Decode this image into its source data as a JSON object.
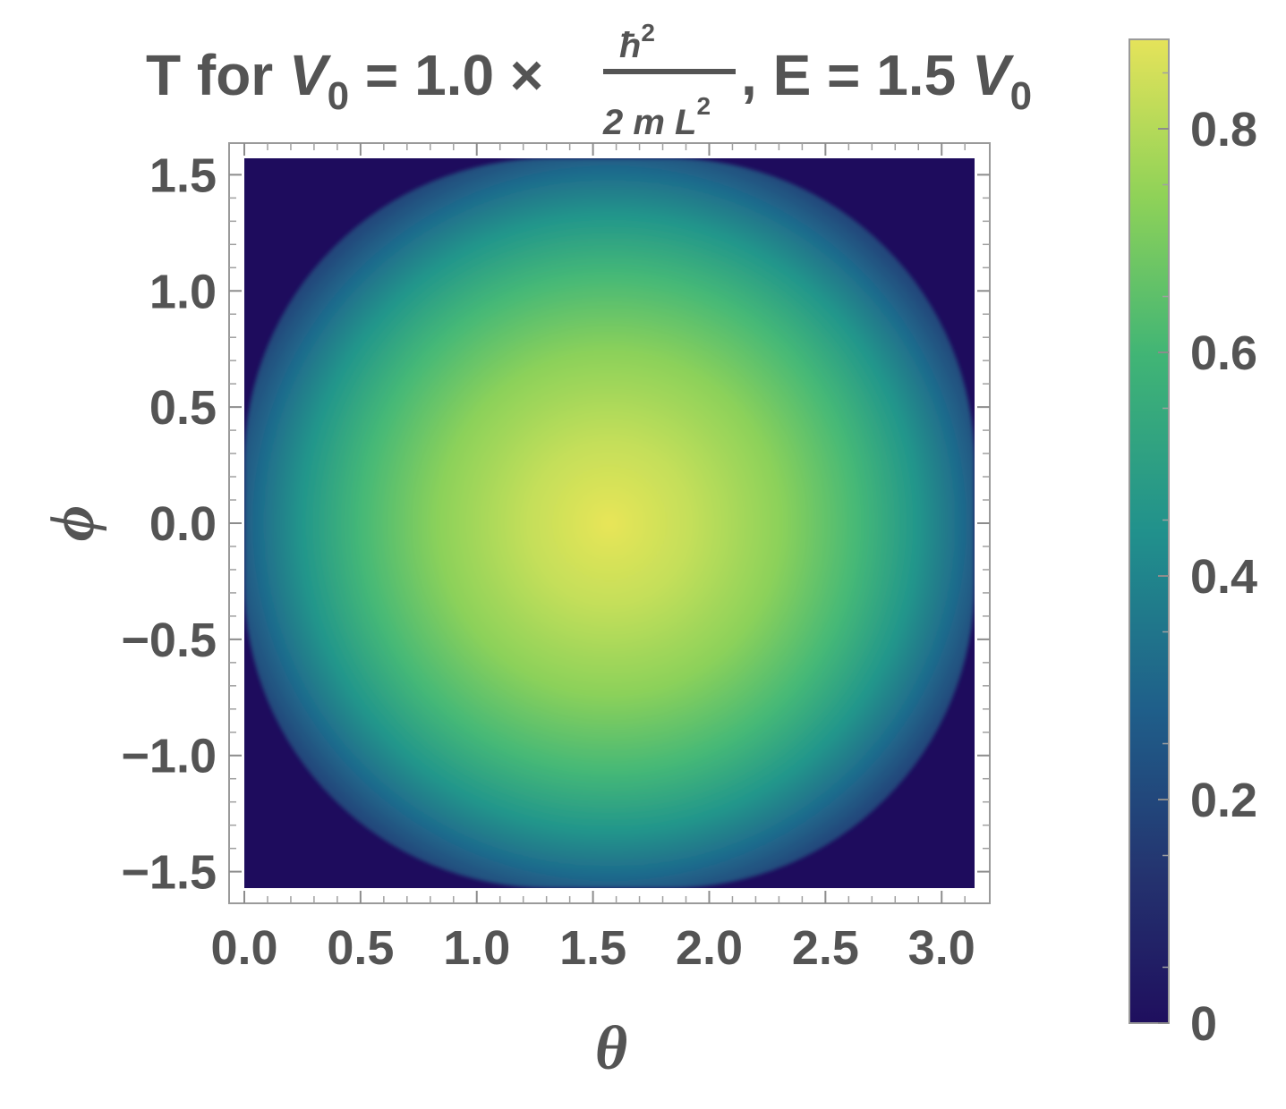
{
  "chart_data": {
    "type": "heatmap",
    "title": {
      "prefix": "T for ",
      "v0_symbol": "V",
      "v0_sub": "0",
      "v0_value": " = 1.0 ×",
      "frac_num": "ħ",
      "frac_num_sup": "2",
      "frac_den": "2 m L",
      "frac_den_sup": "2",
      "suffix": ", E = 1.5 ",
      "e_symbol": "V",
      "e_sub": "0"
    },
    "xlabel": "θ",
    "ylabel": "ϕ",
    "xlim": [
      0,
      3.14159
    ],
    "ylim": [
      -1.5708,
      1.5708
    ],
    "x_ticks": [
      "0.0",
      "0.5",
      "1.0",
      "1.5",
      "2.0",
      "2.5",
      "3.0"
    ],
    "x_tick_values": [
      0,
      0.5,
      1.0,
      1.5,
      2.0,
      2.5,
      3.0
    ],
    "y_ticks": [
      "1.5",
      "1.0",
      "0.5",
      "0.0",
      "−0.5",
      "−1.0",
      "−1.5"
    ],
    "y_tick_values": [
      1.5,
      1.0,
      0.5,
      0.0,
      -0.5,
      -1.0,
      -1.5
    ],
    "value_peak": 0.88,
    "value_peak_at": [
      1.5708,
      0.0
    ],
    "colorbar": {
      "range": [
        0,
        0.88
      ],
      "ticks": [
        "0.8",
        "0.6",
        "0.4",
        "0.2",
        "0"
      ],
      "tick_values": [
        0.8,
        0.6,
        0.4,
        0.2,
        0
      ],
      "colormap": "viridis",
      "colors": [
        "#1f0f5e",
        "#24336f",
        "#1f5f8a",
        "#21918c",
        "#41b575",
        "#8fd258",
        "#e5e35a"
      ]
    }
  }
}
